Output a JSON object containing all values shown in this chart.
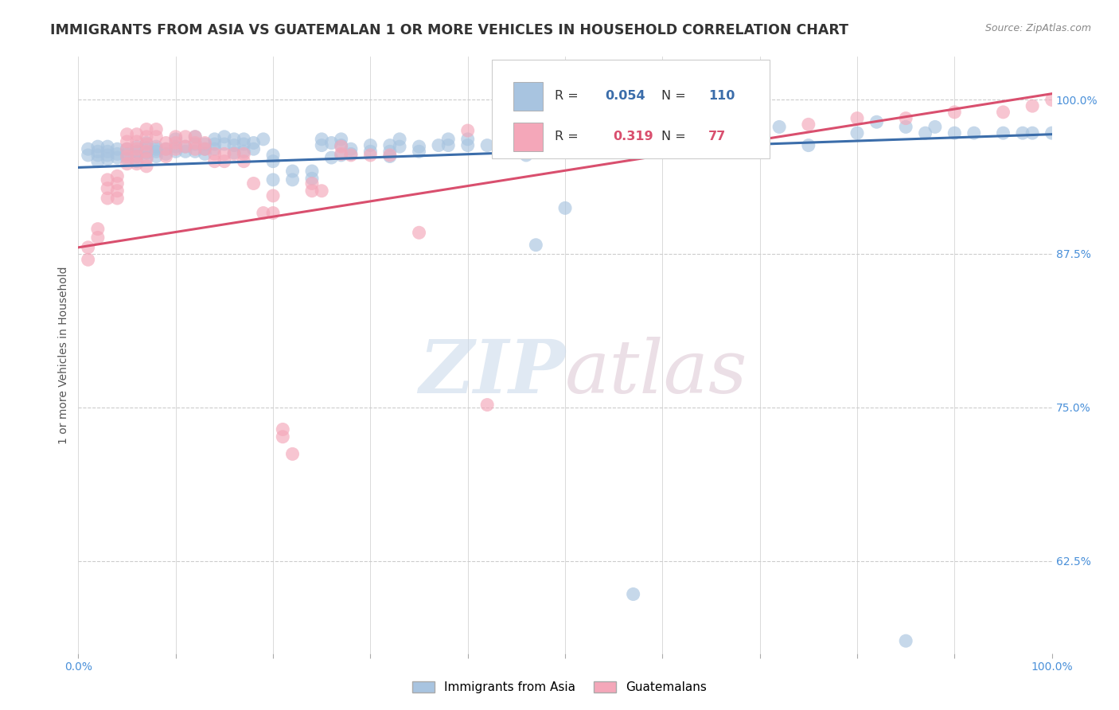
{
  "title": "IMMIGRANTS FROM ASIA VS GUATEMALAN 1 OR MORE VEHICLES IN HOUSEHOLD CORRELATION CHART",
  "source": "Source: ZipAtlas.com",
  "ylabel": "1 or more Vehicles in Household",
  "xlim": [
    0.0,
    1.0
  ],
  "ylim": [
    0.55,
    1.035
  ],
  "yticks": [
    0.625,
    0.75,
    0.875,
    1.0
  ],
  "ytick_labels": [
    "62.5%",
    "75.0%",
    "87.5%",
    "100.0%"
  ],
  "xticks": [
    0.0,
    0.1,
    0.2,
    0.3,
    0.4,
    0.5,
    0.6,
    0.7,
    0.8,
    0.9,
    1.0
  ],
  "xtick_labels": [
    "0.0%",
    "",
    "",
    "",
    "",
    "",
    "",
    "",
    "",
    "",
    "100.0%"
  ],
  "blue_color": "#a8c4e0",
  "pink_color": "#f4a7b9",
  "blue_line_color": "#3b6daa",
  "pink_line_color": "#d94f6e",
  "legend_blue_label": "Immigrants from Asia",
  "legend_pink_label": "Guatemalans",
  "r_blue": "0.054",
  "n_blue": "110",
  "r_pink": "0.319",
  "n_pink": "77",
  "watermark_zip": "ZIP",
  "watermark_atlas": "atlas",
  "background_color": "#ffffff",
  "grid_color": "#cccccc",
  "title_color": "#333333",
  "axis_label_color": "#555555",
  "tick_color": "#4a90d9",
  "blue_line": [
    [
      0.0,
      0.945
    ],
    [
      1.0,
      0.972
    ]
  ],
  "pink_line": [
    [
      0.0,
      0.88
    ],
    [
      1.0,
      1.005
    ]
  ],
  "blue_scatter": [
    [
      0.01,
      0.96
    ],
    [
      0.01,
      0.955
    ],
    [
      0.02,
      0.962
    ],
    [
      0.02,
      0.958
    ],
    [
      0.02,
      0.955
    ],
    [
      0.02,
      0.95
    ],
    [
      0.03,
      0.962
    ],
    [
      0.03,
      0.958
    ],
    [
      0.03,
      0.955
    ],
    [
      0.03,
      0.952
    ],
    [
      0.04,
      0.96
    ],
    [
      0.04,
      0.956
    ],
    [
      0.04,
      0.953
    ],
    [
      0.05,
      0.96
    ],
    [
      0.05,
      0.956
    ],
    [
      0.05,
      0.952
    ],
    [
      0.06,
      0.962
    ],
    [
      0.06,
      0.958
    ],
    [
      0.06,
      0.954
    ],
    [
      0.06,
      0.95
    ],
    [
      0.07,
      0.965
    ],
    [
      0.07,
      0.961
    ],
    [
      0.07,
      0.957
    ],
    [
      0.07,
      0.953
    ],
    [
      0.08,
      0.962
    ],
    [
      0.08,
      0.958
    ],
    [
      0.08,
      0.954
    ],
    [
      0.08,
      0.96
    ],
    [
      0.09,
      0.96
    ],
    [
      0.09,
      0.956
    ],
    [
      0.1,
      0.968
    ],
    [
      0.1,
      0.962
    ],
    [
      0.1,
      0.958
    ],
    [
      0.11,
      0.962
    ],
    [
      0.11,
      0.958
    ],
    [
      0.12,
      0.97
    ],
    [
      0.12,
      0.964
    ],
    [
      0.12,
      0.958
    ],
    [
      0.13,
      0.964
    ],
    [
      0.13,
      0.96
    ],
    [
      0.13,
      0.956
    ],
    [
      0.14,
      0.968
    ],
    [
      0.14,
      0.964
    ],
    [
      0.14,
      0.96
    ],
    [
      0.15,
      0.97
    ],
    [
      0.15,
      0.964
    ],
    [
      0.16,
      0.968
    ],
    [
      0.16,
      0.963
    ],
    [
      0.16,
      0.957
    ],
    [
      0.17,
      0.968
    ],
    [
      0.17,
      0.964
    ],
    [
      0.17,
      0.958
    ],
    [
      0.18,
      0.965
    ],
    [
      0.18,
      0.96
    ],
    [
      0.19,
      0.968
    ],
    [
      0.2,
      0.955
    ],
    [
      0.2,
      0.95
    ],
    [
      0.2,
      0.935
    ],
    [
      0.22,
      0.942
    ],
    [
      0.22,
      0.935
    ],
    [
      0.24,
      0.942
    ],
    [
      0.24,
      0.936
    ],
    [
      0.25,
      0.968
    ],
    [
      0.25,
      0.963
    ],
    [
      0.26,
      0.965
    ],
    [
      0.26,
      0.953
    ],
    [
      0.27,
      0.968
    ],
    [
      0.27,
      0.963
    ],
    [
      0.27,
      0.955
    ],
    [
      0.28,
      0.96
    ],
    [
      0.28,
      0.956
    ],
    [
      0.3,
      0.963
    ],
    [
      0.3,
      0.958
    ],
    [
      0.32,
      0.963
    ],
    [
      0.32,
      0.958
    ],
    [
      0.32,
      0.954
    ],
    [
      0.33,
      0.968
    ],
    [
      0.33,
      0.962
    ],
    [
      0.35,
      0.962
    ],
    [
      0.35,
      0.958
    ],
    [
      0.37,
      0.963
    ],
    [
      0.38,
      0.968
    ],
    [
      0.38,
      0.963
    ],
    [
      0.4,
      0.968
    ],
    [
      0.4,
      0.963
    ],
    [
      0.42,
      0.963
    ],
    [
      0.44,
      0.968
    ],
    [
      0.46,
      0.955
    ],
    [
      0.47,
      0.882
    ],
    [
      0.48,
      0.963
    ],
    [
      0.5,
      0.912
    ],
    [
      0.55,
      0.963
    ],
    [
      0.57,
      0.598
    ],
    [
      0.6,
      0.968
    ],
    [
      0.62,
      0.963
    ],
    [
      0.63,
      0.978
    ],
    [
      0.65,
      0.973
    ],
    [
      0.7,
      0.974
    ],
    [
      0.72,
      0.978
    ],
    [
      0.75,
      0.963
    ],
    [
      0.8,
      0.973
    ],
    [
      0.82,
      0.982
    ],
    [
      0.85,
      0.978
    ],
    [
      0.87,
      0.973
    ],
    [
      0.88,
      0.978
    ],
    [
      0.9,
      0.973
    ],
    [
      0.92,
      0.973
    ],
    [
      0.95,
      0.973
    ],
    [
      0.97,
      0.973
    ],
    [
      0.98,
      0.973
    ],
    [
      1.0,
      0.973
    ],
    [
      0.85,
      0.56
    ]
  ],
  "pink_scatter": [
    [
      0.01,
      0.88
    ],
    [
      0.01,
      0.87
    ],
    [
      0.02,
      0.895
    ],
    [
      0.02,
      0.888
    ],
    [
      0.03,
      0.935
    ],
    [
      0.03,
      0.928
    ],
    [
      0.03,
      0.92
    ],
    [
      0.04,
      0.938
    ],
    [
      0.04,
      0.932
    ],
    [
      0.04,
      0.926
    ],
    [
      0.04,
      0.92
    ],
    [
      0.05,
      0.972
    ],
    [
      0.05,
      0.966
    ],
    [
      0.05,
      0.96
    ],
    [
      0.05,
      0.954
    ],
    [
      0.05,
      0.948
    ],
    [
      0.06,
      0.972
    ],
    [
      0.06,
      0.966
    ],
    [
      0.06,
      0.96
    ],
    [
      0.06,
      0.954
    ],
    [
      0.06,
      0.948
    ],
    [
      0.07,
      0.976
    ],
    [
      0.07,
      0.97
    ],
    [
      0.07,
      0.964
    ],
    [
      0.07,
      0.958
    ],
    [
      0.07,
      0.952
    ],
    [
      0.07,
      0.946
    ],
    [
      0.08,
      0.976
    ],
    [
      0.08,
      0.97
    ],
    [
      0.09,
      0.965
    ],
    [
      0.09,
      0.96
    ],
    [
      0.09,
      0.954
    ],
    [
      0.1,
      0.97
    ],
    [
      0.1,
      0.965
    ],
    [
      0.1,
      0.96
    ],
    [
      0.11,
      0.97
    ],
    [
      0.11,
      0.962
    ],
    [
      0.12,
      0.97
    ],
    [
      0.12,
      0.965
    ],
    [
      0.12,
      0.96
    ],
    [
      0.13,
      0.965
    ],
    [
      0.13,
      0.96
    ],
    [
      0.14,
      0.956
    ],
    [
      0.14,
      0.95
    ],
    [
      0.15,
      0.956
    ],
    [
      0.15,
      0.95
    ],
    [
      0.16,
      0.956
    ],
    [
      0.17,
      0.956
    ],
    [
      0.17,
      0.95
    ],
    [
      0.18,
      0.932
    ],
    [
      0.19,
      0.908
    ],
    [
      0.2,
      0.908
    ],
    [
      0.2,
      0.922
    ],
    [
      0.21,
      0.732
    ],
    [
      0.21,
      0.726
    ],
    [
      0.22,
      0.712
    ],
    [
      0.24,
      0.932
    ],
    [
      0.24,
      0.926
    ],
    [
      0.25,
      0.926
    ],
    [
      0.27,
      0.962
    ],
    [
      0.27,
      0.956
    ],
    [
      0.28,
      0.955
    ],
    [
      0.3,
      0.955
    ],
    [
      0.32,
      0.955
    ],
    [
      0.35,
      0.892
    ],
    [
      0.4,
      0.975
    ],
    [
      0.42,
      0.752
    ],
    [
      0.45,
      0.975
    ],
    [
      0.5,
      0.97
    ],
    [
      0.55,
      0.975
    ],
    [
      0.62,
      0.98
    ],
    [
      0.65,
      0.985
    ],
    [
      0.7,
      0.975
    ],
    [
      0.75,
      0.98
    ],
    [
      0.8,
      0.985
    ],
    [
      0.85,
      0.985
    ],
    [
      0.9,
      0.99
    ],
    [
      0.95,
      0.99
    ],
    [
      0.98,
      0.995
    ],
    [
      1.0,
      1.0
    ]
  ]
}
